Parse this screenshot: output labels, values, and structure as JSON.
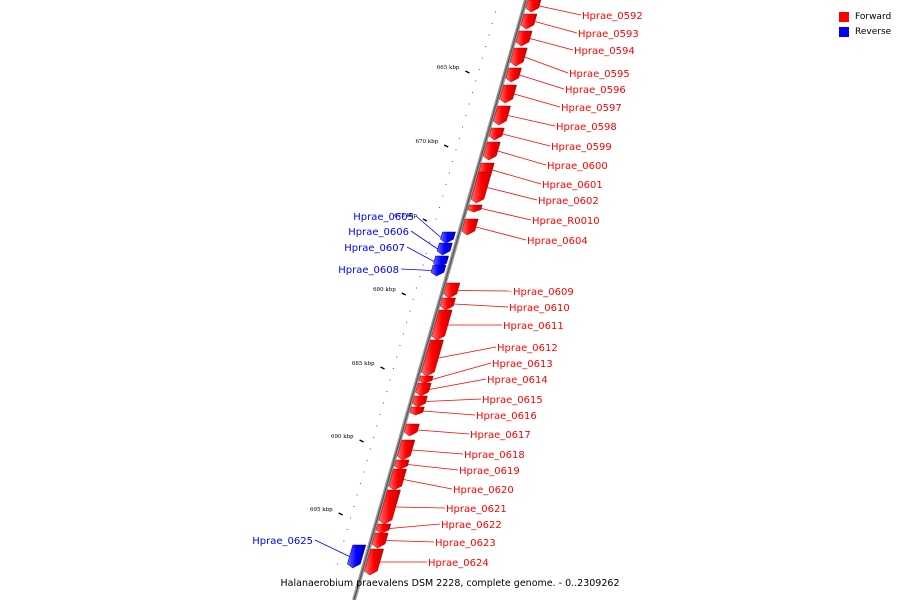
{
  "legend": {
    "forward_label": "Forward",
    "reverse_label": "Reverse",
    "forward_color": "#ff0000",
    "reverse_color": "#0000ff"
  },
  "caption": "Halanaerobium praevalens DSM 2228, complete genome. - 0..2309262",
  "ticks": [
    "665 kbp",
    "670 kbp",
    "675 kbp",
    "680 kbp",
    "685 kbp",
    "690 kbp",
    "695 kbp"
  ],
  "genes": [
    {
      "name": "Hprae_0592",
      "strand": "forward"
    },
    {
      "name": "Hprae_0593",
      "strand": "forward"
    },
    {
      "name": "Hprae_0594",
      "strand": "forward"
    },
    {
      "name": "Hprae_0595",
      "strand": "forward"
    },
    {
      "name": "Hprae_0596",
      "strand": "forward"
    },
    {
      "name": "Hprae_0597",
      "strand": "forward"
    },
    {
      "name": "Hprae_0598",
      "strand": "forward"
    },
    {
      "name": "Hprae_0599",
      "strand": "forward"
    },
    {
      "name": "Hprae_0600",
      "strand": "forward"
    },
    {
      "name": "Hprae_0601",
      "strand": "forward"
    },
    {
      "name": "Hprae_0602",
      "strand": "forward"
    },
    {
      "name": "Hprae_R0010",
      "strand": "forward"
    },
    {
      "name": "Hprae_0604",
      "strand": "forward"
    },
    {
      "name": "Hprae_0605",
      "strand": "reverse"
    },
    {
      "name": "Hprae_0606",
      "strand": "reverse"
    },
    {
      "name": "Hprae_0607",
      "strand": "reverse"
    },
    {
      "name": "Hprae_0608",
      "strand": "reverse"
    },
    {
      "name": "Hprae_0609",
      "strand": "forward"
    },
    {
      "name": "Hprae_0610",
      "strand": "forward"
    },
    {
      "name": "Hprae_0611",
      "strand": "forward"
    },
    {
      "name": "Hprae_0612",
      "strand": "forward"
    },
    {
      "name": "Hprae_0613",
      "strand": "forward"
    },
    {
      "name": "Hprae_0614",
      "strand": "forward"
    },
    {
      "name": "Hprae_0615",
      "strand": "forward"
    },
    {
      "name": "Hprae_0616",
      "strand": "forward"
    },
    {
      "name": "Hprae_0617",
      "strand": "forward"
    },
    {
      "name": "Hprae_0618",
      "strand": "forward"
    },
    {
      "name": "Hprae_0619",
      "strand": "forward"
    },
    {
      "name": "Hprae_0620",
      "strand": "forward"
    },
    {
      "name": "Hprae_0621",
      "strand": "forward"
    },
    {
      "name": "Hprae_0622",
      "strand": "forward"
    },
    {
      "name": "Hprae_0623",
      "strand": "forward"
    },
    {
      "name": "Hprae_0624",
      "strand": "forward"
    },
    {
      "name": "Hprae_0625",
      "strand": "reverse"
    }
  ]
}
